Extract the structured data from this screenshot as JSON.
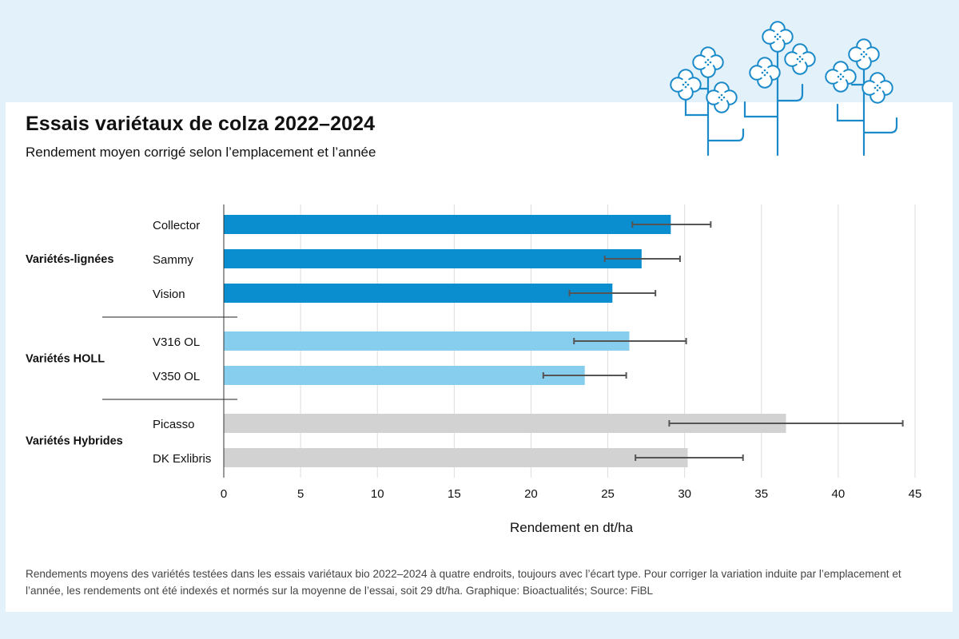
{
  "title": "Essais variétaux de colza 2022–2024",
  "subtitle": "Rendement moyen corrigé selon l’emplacement et l’année",
  "footnote": "Rendements moyens des variétés testées dans les essais variétaux bio 2022–2024 à quatre endroits, toujours avec l’écart type. Pour corriger la variation induite par l’emplacement et l’année, les rendements ont été indexés et normés sur la moyenne de l’essai, soit 29 dt/ha. Graphique: Bioactualités; Source: FiBL",
  "decoration": {
    "icon": "rapeseed-flowers-icon",
    "color": "#1a8ac9"
  },
  "chart_data": {
    "type": "bar",
    "orientation": "horizontal",
    "title": "Essais variétaux de colza 2022–2024",
    "subtitle": "Rendement moyen corrigé selon l’emplacement et l’année",
    "xlabel": "Rendement en dt/ha",
    "ylabel": "",
    "xlim": [
      0,
      45
    ],
    "xticks": [
      0,
      5,
      10,
      15,
      20,
      25,
      30,
      35,
      40,
      45
    ],
    "grid": true,
    "groups": [
      {
        "name": "Variétés-lignées",
        "color": "#0b8ecf",
        "bars": [
          {
            "label": "Collector",
            "value": 29.1,
            "err_low": 26.6,
            "err_high": 31.7
          },
          {
            "label": "Sammy",
            "value": 27.2,
            "err_low": 24.8,
            "err_high": 29.7
          },
          {
            "label": "Vision",
            "value": 25.3,
            "err_low": 22.5,
            "err_high": 28.1
          }
        ]
      },
      {
        "name": "Variétés HOLL",
        "color": "#87ceee",
        "bars": [
          {
            "label": "V316 OL",
            "value": 26.4,
            "err_low": 22.8,
            "err_high": 30.1
          },
          {
            "label": "V350 OL",
            "value": 23.5,
            "err_low": 20.8,
            "err_high": 26.2
          }
        ]
      },
      {
        "name": "Variétés Hybrides",
        "color": "#d2d2d2",
        "bars": [
          {
            "label": "Picasso",
            "value": 36.6,
            "err_low": 29.0,
            "err_high": 44.2
          },
          {
            "label": "DK Exlibris",
            "value": 30.2,
            "err_low": 26.8,
            "err_high": 33.8
          }
        ]
      }
    ]
  }
}
